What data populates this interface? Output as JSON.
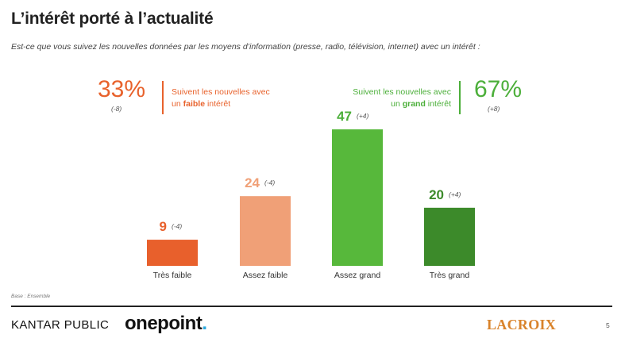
{
  "title": "L’intérêt porté à l’actualité",
  "question": "Est-ce que vous suivez les nouvelles données par les moyens d’information (presse, radio, télévision, internet) avec un intérêt :",
  "summary": {
    "low": {
      "percent": "33%",
      "delta": "(-8)",
      "text_before": "Suivent les nouvelles avec",
      "text_line2_prefix": "un ",
      "text_bold": "faible",
      "text_after": " intérêt",
      "color": "#e8622c"
    },
    "high": {
      "percent": "67%",
      "delta": "(+8)",
      "text_before": "Suivent les nouvelles avec",
      "text_line2_prefix": "un ",
      "text_bold": "grand",
      "text_after": " intérêt",
      "color": "#4caf3a"
    }
  },
  "chart_data": {
    "type": "bar",
    "categories": [
      "Très faible",
      "Assez faible",
      "Assez grand",
      "Très grand"
    ],
    "values": [
      9,
      24,
      47,
      20
    ],
    "value_labels": [
      "9",
      "24",
      "47",
      "20"
    ],
    "deltas": [
      "(-4)",
      "(-4)",
      "(+4)",
      "(+4)"
    ],
    "colors": [
      "#e8602c",
      "#f0a077",
      "#57b83b",
      "#3c8a2a"
    ],
    "label_colors": [
      "#e8602c",
      "#f0a077",
      "#4caf3a",
      "#3c8a2a"
    ],
    "title": "",
    "xlabel": "",
    "ylabel": "",
    "ylim": [
      0,
      47
    ],
    "grid": false,
    "legend": "none"
  },
  "base_note": "Base : Ensemble",
  "footer": {
    "kantar": "KANTAR PUBLIC",
    "onepoint": "onepoint",
    "onepoint_dot": ".",
    "lacroix": "LACROIX",
    "page_number": "5"
  }
}
